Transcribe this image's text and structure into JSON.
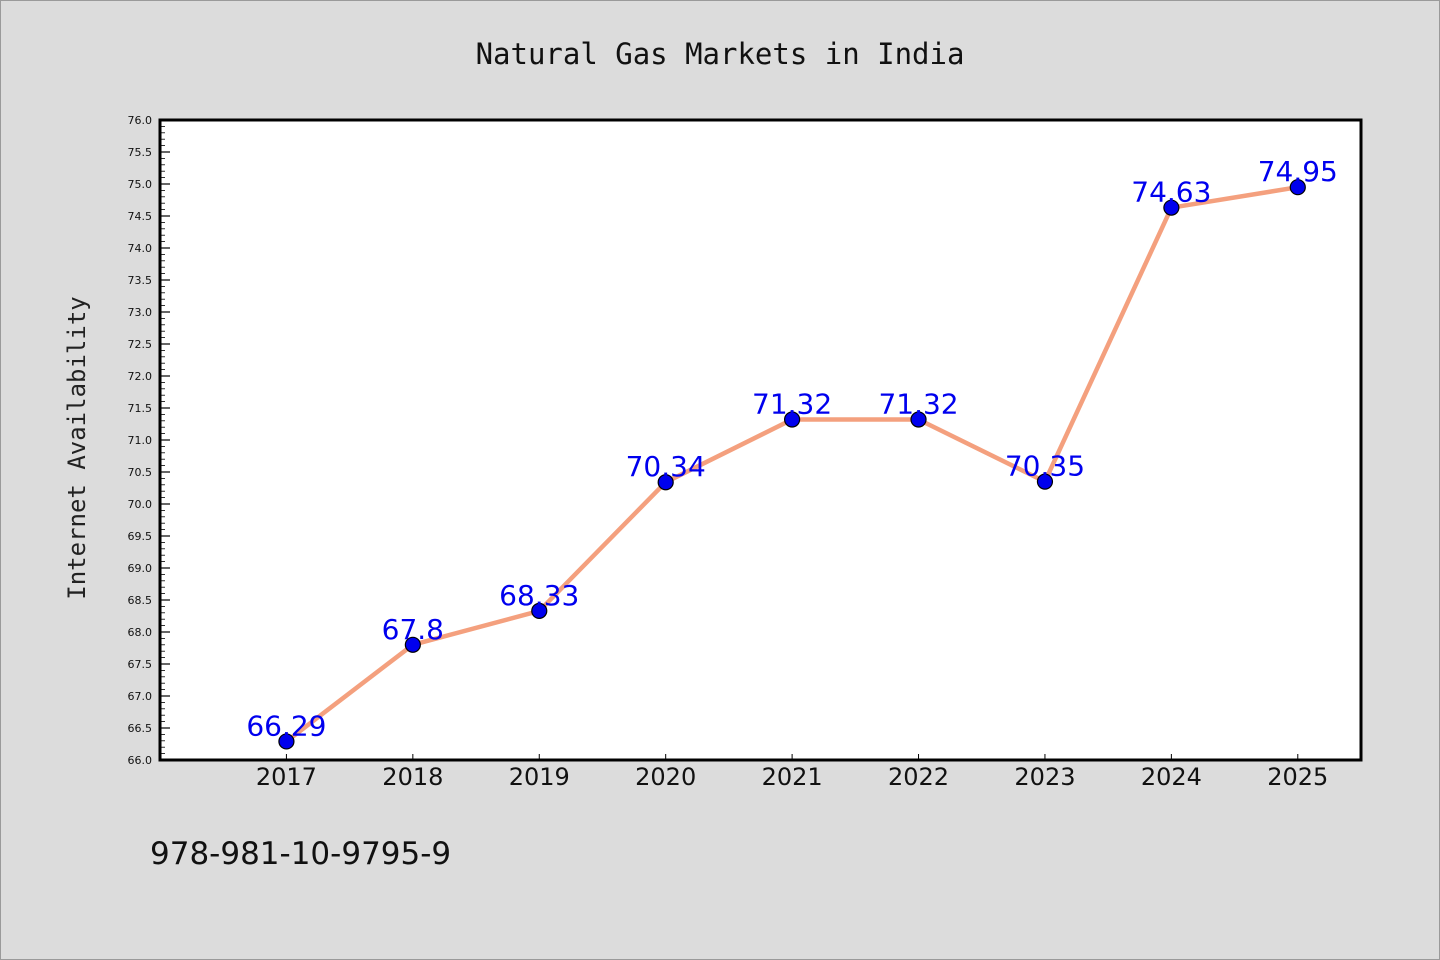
{
  "chart_data": {
    "type": "line",
    "title": "Natural Gas Markets in India",
    "xlabel": "",
    "ylabel": "Internet Availability",
    "categories": [
      "2017",
      "2018",
      "2019",
      "2020",
      "2021",
      "2022",
      "2023",
      "2024",
      "2025"
    ],
    "x_range_years": [
      2016,
      2025
    ],
    "series": [
      {
        "values": [
          66.29,
          67.8,
          68.33,
          70.34,
          71.32,
          71.32,
          70.35,
          74.63,
          74.95
        ]
      }
    ],
    "data_labels": [
      "66.29",
      "67.8",
      "68.33",
      "70.34",
      "71.32",
      "71.32",
      "70.35",
      "74.63",
      "74.95"
    ],
    "ylim": [
      66.0,
      76.0
    ],
    "yticks": [
      "66.0",
      "66.5",
      "67.0",
      "67.5",
      "68.0",
      "68.5",
      "69.0",
      "69.5",
      "70.0",
      "70.5",
      "71.0",
      "71.5",
      "72.0",
      "72.5",
      "73.0",
      "73.5",
      "74.0",
      "74.5",
      "75.0",
      "75.5",
      "76.0"
    ],
    "grid": false,
    "line_color": "#f4a07e",
    "marker_color": "#0000ee",
    "label_color": "#0000ee",
    "background_color": "#dcdcdc",
    "plot_background": "#ffffff"
  },
  "footnote": "978-981-10-9795-9"
}
